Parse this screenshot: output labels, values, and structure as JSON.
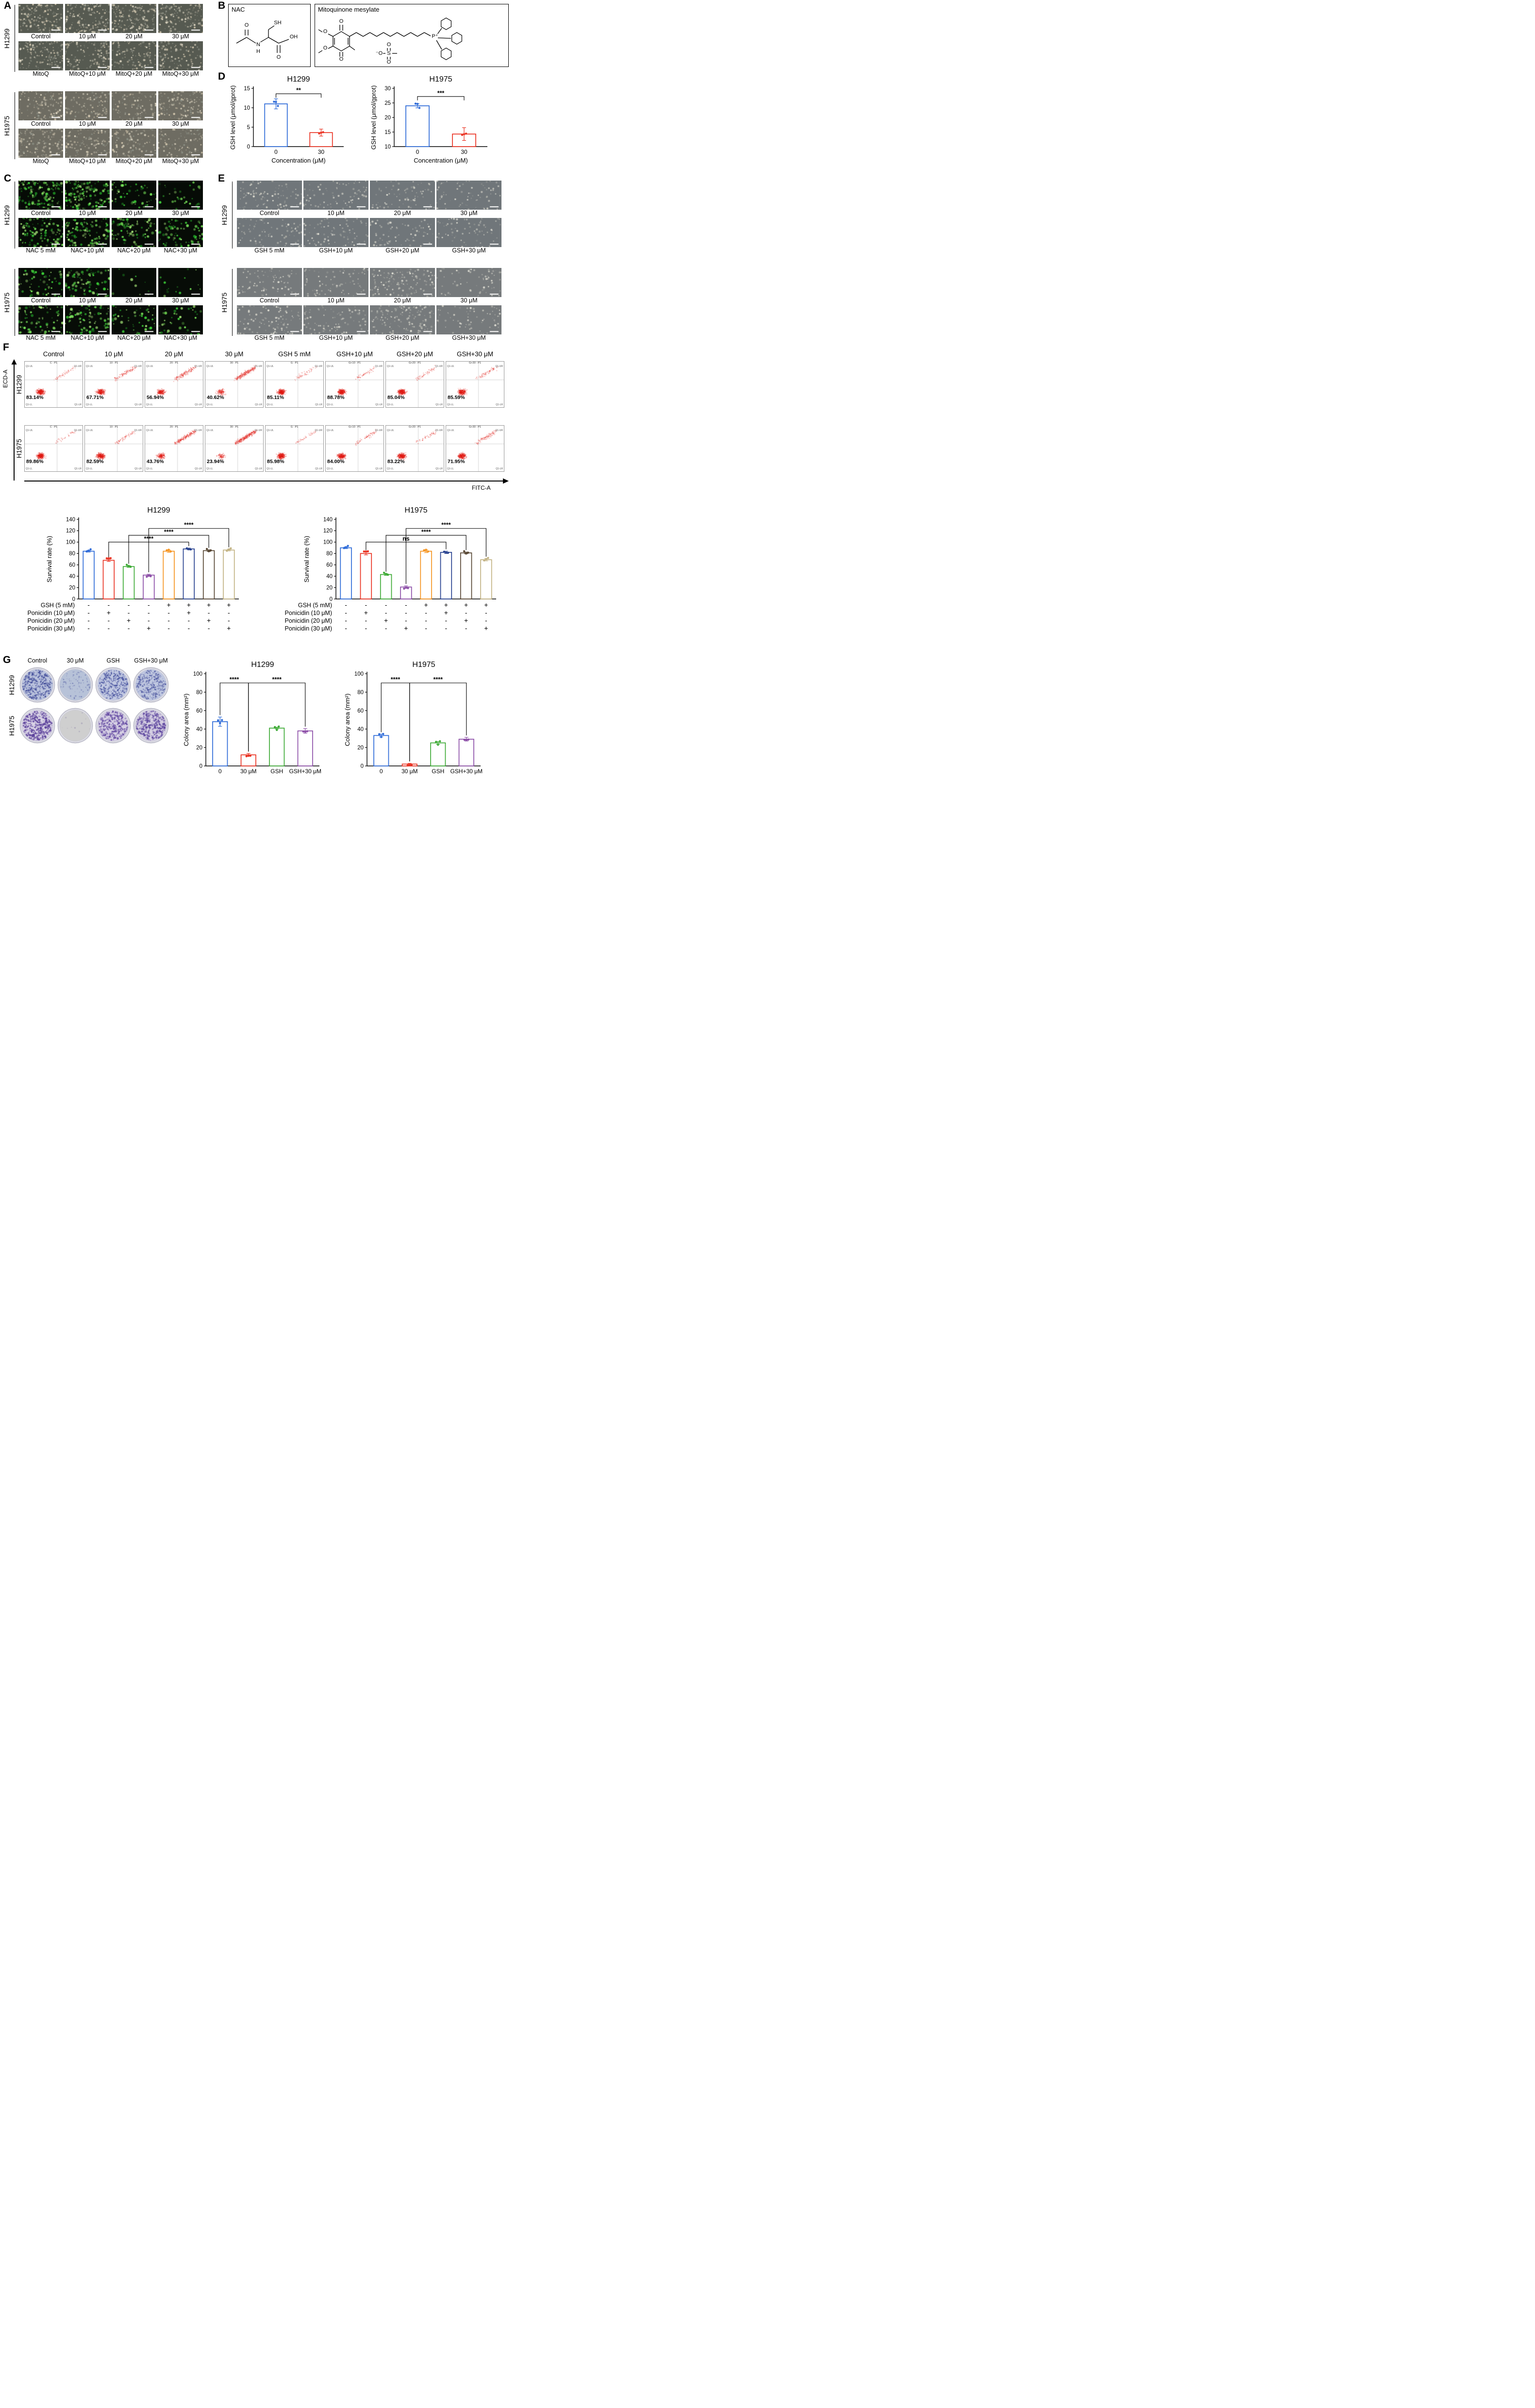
{
  "labels": {
    "A": "A",
    "B": "B",
    "C": "C",
    "D": "D",
    "E": "E",
    "F": "F",
    "G": "G"
  },
  "panelA": {
    "groups": [
      {
        "cell_line": "H1299",
        "rows": [
          {
            "labels": [
              "Control",
              "10 μM",
              "20 μM",
              "30 μM"
            ],
            "density": [
              150,
              160,
              170,
              150
            ]
          },
          {
            "labels": [
              "MitoQ",
              "MitoQ+10 μM",
              "MitoQ+20 μM",
              "MitoQ+30 μM"
            ],
            "density": [
              140,
              130,
              120,
              110
            ]
          }
        ]
      },
      {
        "cell_line": "H1975",
        "rows": [
          {
            "labels": [
              "Control",
              "10 μM",
              "20 μM",
              "30 μM"
            ],
            "density": [
              120,
              110,
              100,
              140
            ]
          },
          {
            "labels": [
              "MitoQ",
              "MitoQ+10 μM",
              "MitoQ+20 μM",
              "MitoQ+30 μM"
            ],
            "density": [
              130,
              120,
              110,
              100
            ]
          }
        ]
      }
    ]
  },
  "panelB": {
    "nac_title": "NAC",
    "mitoq_title": "Mitoquinone mesylate",
    "nac_atoms": [
      "O",
      "SH",
      "N",
      "H",
      "O",
      "OH"
    ],
    "mitoq_atoms": [
      "O",
      "O",
      "O",
      "O",
      "P⁺",
      "O",
      "O",
      "⁻O",
      "S"
    ]
  },
  "panelC": {
    "groups": [
      {
        "cell_line": "H1299",
        "rows": [
          {
            "labels": [
              "Control",
              "10 μM",
              "20 μM",
              "30 μM"
            ],
            "density": [
              130,
              140,
              55,
              30
            ]
          },
          {
            "labels": [
              "NAC 5 mM",
              "NAC+10 μM",
              "NAC+20 μM",
              "NAC+30 μM"
            ],
            "density": [
              115,
              100,
              85,
              75
            ]
          }
        ]
      },
      {
        "cell_line": "H1975",
        "rows": [
          {
            "labels": [
              "Control",
              "10 μM",
              "20 μM",
              "30 μM"
            ],
            "density": [
              60,
              85,
              10,
              15
            ]
          },
          {
            "labels": [
              "NAC 5 mM",
              "NAC+10 μM",
              "NAC+20 μM",
              "NAC+30 μM"
            ],
            "density": [
              75,
              90,
              50,
              40
            ]
          }
        ]
      }
    ]
  },
  "panelE": {
    "groups": [
      {
        "cell_line": "H1299",
        "rows": [
          {
            "labels": [
              "Control",
              "10 μM",
              "20 μM",
              "30 μM"
            ],
            "density": [
              90,
              80,
              75,
              70
            ]
          },
          {
            "labels": [
              "GSH 5 mM",
              "GSH+10 μM",
              "GSH+20 μM",
              "GSH+30 μM"
            ],
            "density": [
              85,
              80,
              75,
              70
            ]
          }
        ]
      },
      {
        "cell_line": "H1975",
        "rows": [
          {
            "labels": [
              "Control",
              "10 μM",
              "20 μM",
              "30 μM"
            ],
            "density": [
              85,
              80,
              140,
              70
            ]
          },
          {
            "labels": [
              "GSH 5 mM",
              "GSH+10 μM",
              "GSH+20 μM",
              "GSH+30 μM"
            ],
            "density": [
              110,
              95,
              150,
              65
            ]
          }
        ]
      }
    ]
  },
  "panelF": {
    "column_headers": [
      "Control",
      "10 μM",
      "20 μM",
      "30 μM",
      "GSH 5 mM",
      "GSH+10 μM",
      "GSH+20 μM",
      "GSH+30 μM"
    ],
    "plot_headers": [
      "C : P1",
      "10 : P1",
      "20 : P1",
      "30 : P1",
      "G : P1",
      "G+10 : P1",
      "G+20 : P1",
      "G+30 : P1"
    ],
    "y_axis_label": "ECD-A",
    "x_axis_label": "FITC-A",
    "quadrant_labels": [
      "Q1-UL",
      "Q1-UR",
      "Q1-LL",
      "Q1-LR"
    ],
    "rows": [
      {
        "cell_line": "H1299",
        "live_percentages": [
          83.14,
          67.71,
          56.94,
          40.62,
          85.11,
          88.78,
          85.04,
          85.59
        ]
      },
      {
        "cell_line": "H1975",
        "live_percentages": [
          89.86,
          82.59,
          43.76,
          23.94,
          85.98,
          84.0,
          83.22,
          71.95
        ]
      }
    ]
  },
  "treatments": {
    "rows": [
      {
        "label": "GSH (5 mM)",
        "signs": [
          "-",
          "-",
          "-",
          "-",
          "+",
          "+",
          "+",
          "+"
        ]
      },
      {
        "label": "Ponicidin (10 μM)",
        "signs": [
          "-",
          "+",
          "-",
          "-",
          "-",
          "+",
          "-",
          "-"
        ]
      },
      {
        "label": "Ponicidin (20 μM)",
        "signs": [
          "-",
          "-",
          "+",
          "-",
          "-",
          "-",
          "+",
          "-"
        ]
      },
      {
        "label": "Ponicidin (30 μM)",
        "signs": [
          "-",
          "-",
          "-",
          "+",
          "-",
          "-",
          "-",
          "+"
        ]
      }
    ]
  },
  "panelG": {
    "column_headers": [
      "Control",
      "30 μM",
      "GSH",
      "GSH+30 μM"
    ],
    "rows": [
      {
        "cell_line": "H1299",
        "dishes": [
          {
            "condition": "Control",
            "fill": "#bcc4de",
            "dot": "#3c4796",
            "n": 420,
            "dr": 1.2
          },
          {
            "condition": "30 μM",
            "fill": "#b7c2d8",
            "dot": "#6a74b0",
            "n": 90,
            "dr": 1.0
          },
          {
            "condition": "GSH",
            "fill": "#c2c9e2",
            "dot": "#434e9c",
            "n": 380,
            "dr": 1.1
          },
          {
            "condition": "GSH+30 μM",
            "fill": "#bfc7e0",
            "dot": "#4a549e",
            "n": 340,
            "dr": 1.1
          }
        ]
      },
      {
        "cell_line": "H1975",
        "dishes": [
          {
            "condition": "Control",
            "fill": "#d9d3e6",
            "dot": "#5a3f9a",
            "n": 420,
            "dr": 1.6
          },
          {
            "condition": "30 μM",
            "fill": "#cfcfcf",
            "dot": "#9a93b0",
            "n": 10,
            "dr": 1.2
          },
          {
            "condition": "GSH",
            "fill": "#d6d0e4",
            "dot": "#5f44a0",
            "n": 360,
            "dr": 1.5
          },
          {
            "condition": "GSH+30 μM",
            "fill": "#d4cee2",
            "dot": "#58409c",
            "n": 380,
            "dr": 1.5
          }
        ]
      }
    ]
  },
  "chart_data": [
    {
      "id": "gsh-h1299",
      "type": "bar",
      "title": "H1299",
      "ylabel": "GSH level (μmol/gprot)",
      "xlabel": "Concentration (μM)",
      "categories": [
        "0",
        "30"
      ],
      "values": [
        11.0,
        3.6
      ],
      "errors": [
        1.3,
        0.9
      ],
      "ylim": [
        0,
        15
      ],
      "yticks": [
        0,
        5,
        10,
        15
      ],
      "colors": [
        "#2e6bd8",
        "#ea3323"
      ],
      "sig": [
        {
          "from": 0,
          "to": 1,
          "y": 13.6,
          "label": "**"
        }
      ]
    },
    {
      "id": "gsh-h1975",
      "type": "bar",
      "title": "H1975",
      "ylabel": "GSH level (μmol/gprot)",
      "xlabel": "Concentration (μM)",
      "categories": [
        "0",
        "30"
      ],
      "values": [
        24.0,
        14.3
      ],
      "errors": [
        0.7,
        2.2
      ],
      "ylim": [
        10,
        30
      ],
      "yticks": [
        10,
        15,
        20,
        25,
        30
      ],
      "colors": [
        "#2e6bd8",
        "#ea3323"
      ],
      "sig": [
        {
          "from": 0,
          "to": 1,
          "y": 27.2,
          "label": "***"
        }
      ]
    },
    {
      "id": "survival-h1299",
      "type": "bar",
      "title": "H1299",
      "ylabel": "Survival rate (%)",
      "values": [
        84,
        68,
        57,
        42,
        84,
        88,
        85,
        86
      ],
      "errors": [
        1.5,
        2,
        1.5,
        1.5,
        2,
        1.5,
        1.5,
        1.5
      ],
      "ylim": [
        0,
        140
      ],
      "yticks": [
        0,
        20,
        40,
        60,
        80,
        100,
        120,
        140
      ],
      "colors": [
        "#2e6bd8",
        "#ea3323",
        "#3daa35",
        "#8d4fa8",
        "#f59420",
        "#27418f",
        "#574633",
        "#c2b283"
      ],
      "sig": [
        {
          "from": 1,
          "to": 5,
          "y": 100,
          "label": "****"
        },
        {
          "from": 2,
          "to": 6,
          "y": 112,
          "label": "****"
        },
        {
          "from": 3,
          "to": 7,
          "y": 124,
          "label": "****"
        }
      ]
    },
    {
      "id": "survival-h1975",
      "type": "bar",
      "title": "H1975",
      "ylabel": "Survival rate (%)",
      "values": [
        90,
        80,
        43,
        21,
        84,
        82,
        81,
        69
      ],
      "errors": [
        1.5,
        2.5,
        1.5,
        2,
        2.5,
        2,
        1.5,
        2
      ],
      "ylim": [
        0,
        140
      ],
      "yticks": [
        0,
        20,
        40,
        60,
        80,
        100,
        120,
        140
      ],
      "colors": [
        "#2e6bd8",
        "#ea3323",
        "#3daa35",
        "#8d4fa8",
        "#f59420",
        "#27418f",
        "#574633",
        "#c2b283"
      ],
      "sig": [
        {
          "from": 1,
          "to": 5,
          "y": 100,
          "label": "ns"
        },
        {
          "from": 2,
          "to": 6,
          "y": 112,
          "label": "****"
        },
        {
          "from": 3,
          "to": 7,
          "y": 124,
          "label": "****"
        }
      ]
    },
    {
      "id": "colony-h1299",
      "type": "bar",
      "title": "H1299",
      "ylabel": "Colony area (mm²)",
      "categories": [
        "0",
        "30 μM",
        "GSH",
        "GSH+30 μM"
      ],
      "values": [
        48,
        12,
        41,
        38
      ],
      "errors": [
        5,
        1.5,
        1,
        2.5
      ],
      "ylim": [
        0,
        100
      ],
      "yticks": [
        0,
        20,
        40,
        60,
        80,
        100
      ],
      "colors": [
        "#2e6bd8",
        "#ea3323",
        "#3daa35",
        "#8d4fa8"
      ],
      "sig": [
        {
          "from": 0,
          "to": 1,
          "y": 90,
          "label": "****"
        },
        {
          "from": 1,
          "to": 3,
          "y": 90,
          "label": "****"
        }
      ]
    },
    {
      "id": "colony-h1975",
      "type": "bar",
      "title": "H1975",
      "ylabel": "Colony area (mm²)",
      "categories": [
        "0",
        "30 μM",
        "GSH",
        "GSH+30 μM"
      ],
      "values": [
        33,
        2,
        25,
        29
      ],
      "errors": [
        1.5,
        0.8,
        1.5,
        2
      ],
      "ylim": [
        0,
        100
      ],
      "yticks": [
        0,
        20,
        40,
        60,
        80,
        100
      ],
      "colors": [
        "#2e6bd8",
        "#ea3323",
        "#3daa35",
        "#8d4fa8"
      ],
      "sig": [
        {
          "from": 0,
          "to": 1,
          "y": 90,
          "label": "****"
        },
        {
          "from": 1,
          "to": 3,
          "y": 90,
          "label": "****"
        }
      ]
    }
  ]
}
